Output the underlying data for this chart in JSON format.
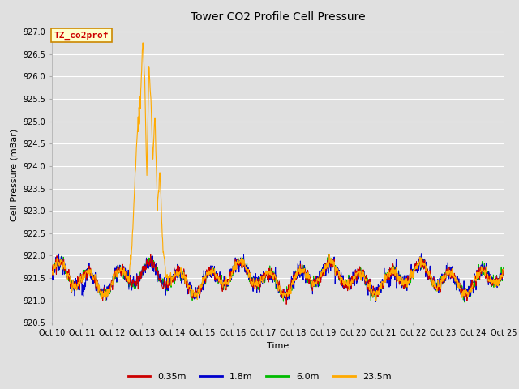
{
  "title": "Tower CO2 Profile Cell Pressure",
  "xlabel": "Time",
  "ylabel": "Cell Pressure (mBar)",
  "ylim": [
    920.5,
    927.1
  ],
  "xlim": [
    0,
    15
  ],
  "background_color": "#e0e0e0",
  "plot_bg_color": "#e0e0e0",
  "grid_color": "#ffffff",
  "xtick_labels": [
    "Oct 10",
    "Oct 11",
    "Oct 12",
    "Oct 13",
    "Oct 14",
    "Oct 15",
    "Oct 16",
    "Oct 17",
    "Oct 18",
    "Oct 19",
    "Oct 20",
    "Oct 21",
    "Oct 22",
    "Oct 23",
    "Oct 24",
    "Oct 25"
  ],
  "ytick_values": [
    920.5,
    921.0,
    921.5,
    922.0,
    922.5,
    923.0,
    923.5,
    924.0,
    924.5,
    925.0,
    925.5,
    926.0,
    926.5,
    927.0
  ],
  "colors": {
    "0.35m": "#cc0000",
    "1.8m": "#0000cc",
    "6.0m": "#00bb00",
    "23.5m": "#ffaa00"
  },
  "legend_label": "TZ_co2prof",
  "legend_entries": [
    "0.35m",
    "1.8m",
    "6.0m",
    "23.5m"
  ],
  "annotation_box_color": "#ffffcc",
  "annotation_border_color": "#cc8800",
  "annotation_text_color": "#cc0000"
}
